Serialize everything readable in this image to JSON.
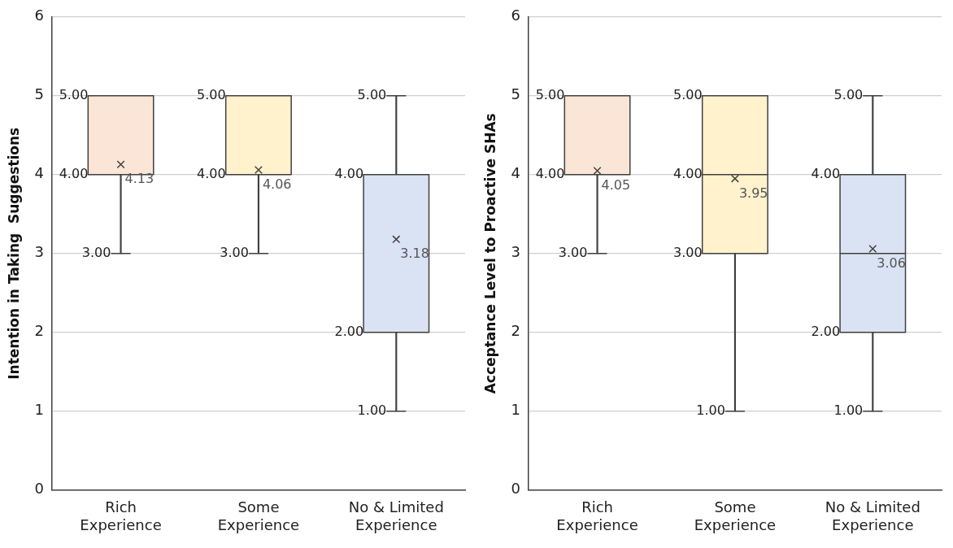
{
  "chart_data": [
    {
      "type": "box",
      "ylabel": "Intention in Taking  Suggestions",
      "categories": [
        "Rich Experience",
        "Some Experience",
        "No & Limited Experience"
      ],
      "colors": [
        "#fbe5d6",
        "#fff2cc",
        "#dae3f3"
      ],
      "ylim": [
        0,
        6
      ],
      "yticks": [
        0,
        1,
        2,
        3,
        4,
        5,
        6
      ],
      "grid": "y",
      "boxes": [
        {
          "low": 3,
          "q1": 4,
          "median": 4,
          "q3": 5,
          "high": 5
        },
        {
          "low": 3,
          "q1": 4,
          "median": 4,
          "q3": 5,
          "high": 5
        },
        {
          "low": 1,
          "q1": 2,
          "median": 4,
          "q3": 4,
          "high": 5
        }
      ],
      "series": [
        {
          "type": "scatter",
          "color": "#404040",
          "marker": "cross",
          "x": [
            "Rich Experience",
            "Some Experience",
            "No & Limited Experience"
          ],
          "values": [
            4.13,
            4.06,
            3.18
          ]
        }
      ],
      "annotations": [
        {
          "text": "5.00",
          "x": "Rich Experience",
          "y": 5
        },
        {
          "text": "4.00",
          "x": "Rich Experience",
          "y": 4
        },
        {
          "text": "3.00",
          "x": "Rich Experience",
          "y": 3
        },
        {
          "text": "4.13",
          "x": "Rich Experience",
          "y": 4.13
        },
        {
          "text": "5.00",
          "x": "Some Experience",
          "y": 5
        },
        {
          "text": "4.00",
          "x": "Some Experience",
          "y": 4
        },
        {
          "text": "3.00",
          "x": "Some Experience",
          "y": 3
        },
        {
          "text": "4.06",
          "x": "Some Experience",
          "y": 4.06
        },
        {
          "text": "5.00",
          "x": "No & Limited Experience",
          "y": 5
        },
        {
          "text": "4.00",
          "x": "No & Limited Experience",
          "y": 4
        },
        {
          "text": "2.00",
          "x": "No & Limited Experience",
          "y": 2
        },
        {
          "text": "1.00",
          "x": "No & Limited Experience",
          "y": 1
        },
        {
          "text": "3.18",
          "x": "No & Limited Experience",
          "y": 3.18
        }
      ]
    },
    {
      "type": "box",
      "ylabel": "Acceptance Level to Proactive SHAs",
      "categories": [
        "Rich Experience",
        "Some Experience",
        "No & Limited Experience"
      ],
      "colors": [
        "#fbe5d6",
        "#fff2cc",
        "#dae3f3"
      ],
      "ylim": [
        0,
        6
      ],
      "yticks": [
        0,
        1,
        2,
        3,
        4,
        5,
        6
      ],
      "grid": "y",
      "boxes": [
        {
          "low": 3,
          "q1": 4,
          "median": 4,
          "q3": 5,
          "high": 5
        },
        {
          "low": 1,
          "q1": 3,
          "median": 4,
          "q3": 5,
          "high": 5
        },
        {
          "low": 1,
          "q1": 2,
          "median": 3,
          "q3": 4,
          "high": 5
        }
      ],
      "series": [
        {
          "type": "scatter",
          "color": "#404040",
          "marker": "cross",
          "x": [
            "Rich Experience",
            "Some Experience",
            "No & Limited Experience"
          ],
          "values": [
            4.05,
            3.95,
            3.06
          ]
        }
      ],
      "annotations": [
        {
          "text": "5.00",
          "x": "Rich Experience",
          "y": 5
        },
        {
          "text": "4.00",
          "x": "Rich Experience",
          "y": 4
        },
        {
          "text": "3.00",
          "x": "Rich Experience",
          "y": 3
        },
        {
          "text": "4.05",
          "x": "Rich Experience",
          "y": 4.05
        },
        {
          "text": "5.00",
          "x": "Some Experience",
          "y": 5
        },
        {
          "text": "4.00",
          "x": "Some Experience",
          "y": 4
        },
        {
          "text": "3.00",
          "x": "Some Experience",
          "y": 3
        },
        {
          "text": "1.00",
          "x": "Some Experience",
          "y": 1
        },
        {
          "text": "3.95",
          "x": "Some Experience",
          "y": 3.95
        },
        {
          "text": "5.00",
          "x": "No & Limited Experience",
          "y": 5
        },
        {
          "text": "4.00",
          "x": "No & Limited Experience",
          "y": 4
        },
        {
          "text": "2.00",
          "x": "No & Limited Experience",
          "y": 2
        },
        {
          "text": "1.00",
          "x": "No & Limited Experience",
          "y": 1
        },
        {
          "text": "3.06",
          "x": "No & Limited Experience",
          "y": 3.06
        }
      ]
    }
  ]
}
